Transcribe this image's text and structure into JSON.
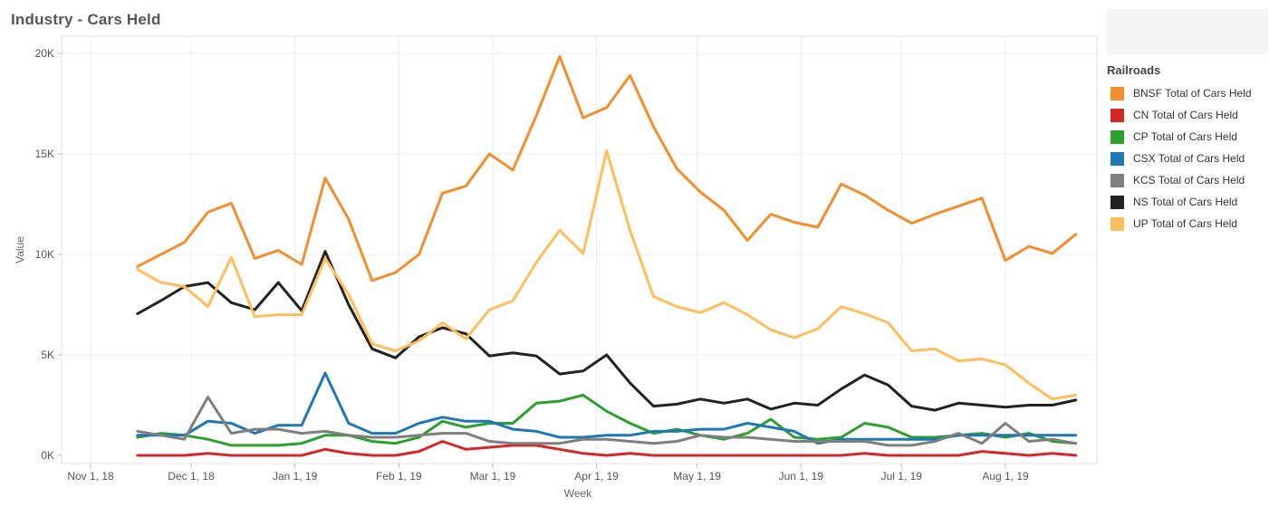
{
  "title": "Industry - Cars Held",
  "legend_title": "Railroads",
  "chart_data": {
    "type": "line",
    "title": "Industry - Cars Held",
    "xlabel": "Week",
    "ylabel": "Value",
    "ylim": [
      0,
      20000
    ],
    "y_ticks": [
      0,
      5000,
      10000,
      15000,
      20000
    ],
    "y_tick_labels": [
      "0K",
      "5K",
      "10K",
      "15K",
      "20K"
    ],
    "x_tick_labels": [
      "Nov 1, 18",
      "Dec 1, 18",
      "Jan 1, 19",
      "Feb 1, 19",
      "Mar 1, 19",
      "Apr 1, 19",
      "May 1, 19",
      "Jun 1, 19",
      "Jul 1, 19",
      "Aug 1, 19"
    ],
    "x_tick_days": [
      0,
      30,
      61,
      92,
      120,
      151,
      181,
      212,
      242,
      273
    ],
    "week_start_day": 14,
    "week_step_days": 7,
    "legend_position": "right",
    "grid": true,
    "series": [
      {
        "name": "BNSF Total of Cars Held",
        "color": "#f28e2b",
        "values": [
          9400,
          10000,
          10600,
          12100,
          12550,
          9800,
          10200,
          9500,
          13800,
          11750,
          8700,
          9100,
          10000,
          13050,
          13400,
          15000,
          14200,
          16900,
          19850,
          16800,
          17300,
          18900,
          16350,
          14250,
          13100,
          12200,
          10700,
          12000,
          11600,
          11350,
          13500,
          12950,
          12200,
          11550,
          12000,
          12400,
          12800,
          9700,
          10400,
          10050,
          11000
        ]
      },
      {
        "name": "CN Total of Cars Held",
        "color": "#d62728",
        "values": [
          0,
          0,
          0,
          100,
          0,
          0,
          0,
          0,
          300,
          100,
          0,
          0,
          200,
          700,
          300,
          400,
          500,
          500,
          300,
          100,
          0,
          100,
          0,
          0,
          0,
          0,
          0,
          0,
          0,
          0,
          0,
          100,
          0,
          0,
          0,
          0,
          200,
          100,
          0,
          100,
          0
        ]
      },
      {
        "name": "CP Total of Cars Held",
        "color": "#2ca02c",
        "values": [
          900,
          1100,
          1000,
          800,
          500,
          500,
          500,
          600,
          1000,
          1000,
          700,
          600,
          900,
          1700,
          1400,
          1600,
          1600,
          2600,
          2700,
          3000,
          2200,
          1600,
          1100,
          1300,
          1000,
          800,
          1100,
          1800,
          900,
          800,
          900,
          1600,
          1400,
          900,
          900,
          1000,
          1100,
          900,
          1100,
          700,
          600
        ]
      },
      {
        "name": "CSX Total of Cars Held",
        "color": "#1f77b4",
        "values": [
          1000,
          1000,
          1000,
          1700,
          1600,
          1100,
          1500,
          1500,
          4100,
          1600,
          1100,
          1100,
          1600,
          1900,
          1700,
          1700,
          1300,
          1200,
          900,
          900,
          1000,
          1000,
          1200,
          1200,
          1300,
          1300,
          1600,
          1400,
          1200,
          600,
          800,
          800,
          800,
          800,
          800,
          1000,
          1000,
          1000,
          1000,
          1000,
          1000
        ]
      },
      {
        "name": "KCS Total of Cars Held",
        "color": "#7f7f7f",
        "values": [
          1200,
          1000,
          800,
          2900,
          1100,
          1300,
          1300,
          1100,
          1200,
          1000,
          900,
          900,
          1000,
          1100,
          1100,
          700,
          600,
          600,
          600,
          800,
          800,
          700,
          600,
          700,
          1000,
          900,
          900,
          800,
          700,
          700,
          700,
          700,
          500,
          500,
          700,
          1100,
          600,
          1600,
          700,
          800,
          600
        ]
      },
      {
        "name": "NS Total of Cars Held",
        "color": "#222222",
        "values": [
          7050,
          7700,
          8400,
          8600,
          7600,
          7250,
          8600,
          7200,
          10150,
          7500,
          5300,
          4850,
          5900,
          6350,
          6050,
          4950,
          5100,
          4950,
          4050,
          4200,
          5000,
          3600,
          2450,
          2550,
          2800,
          2600,
          2800,
          2300,
          2600,
          2500,
          3300,
          4000,
          3500,
          2450,
          2250,
          2600,
          2500,
          2400,
          2500,
          2500,
          2750
        ]
      },
      {
        "name": "UP Total of Cars Held",
        "color": "#ffbe5c",
        "values": [
          9250,
          8600,
          8400,
          7400,
          9850,
          6900,
          7000,
          7000,
          9800,
          8000,
          5550,
          5200,
          5700,
          6600,
          5800,
          7250,
          7700,
          9600,
          11200,
          10050,
          15150,
          11200,
          7900,
          7400,
          7100,
          7600,
          7000,
          6250,
          5850,
          6300,
          7400,
          7050,
          6600,
          5200,
          5300,
          4700,
          4800,
          4500,
          3600,
          2800,
          3000
        ]
      }
    ]
  }
}
